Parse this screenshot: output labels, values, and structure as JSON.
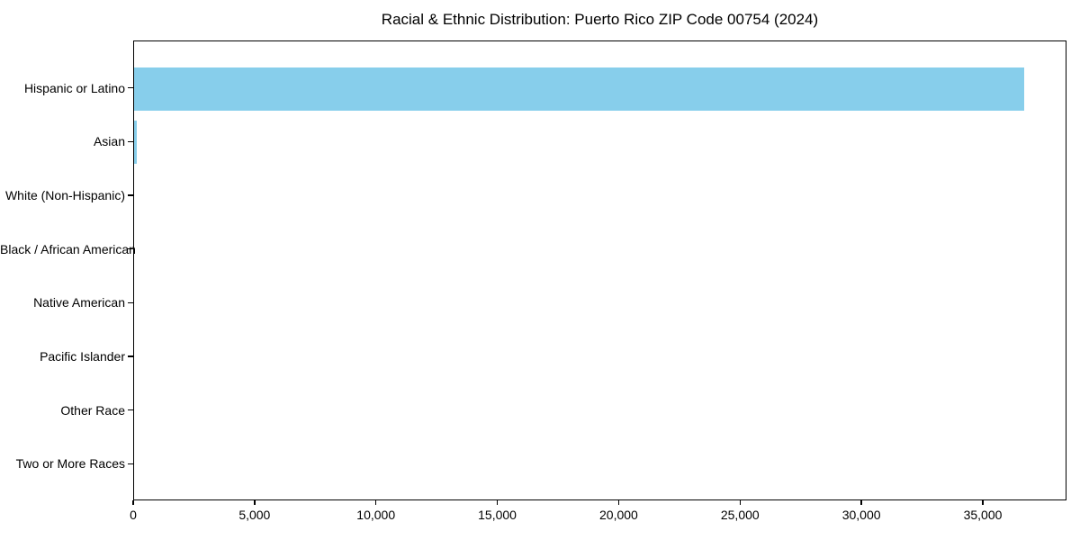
{
  "chart_data": {
    "type": "bar",
    "orientation": "horizontal",
    "title": "Racial & Ethnic Distribution: Puerto Rico ZIP Code 00754 (2024)",
    "categories": [
      "Hispanic or Latino",
      "Asian",
      "White (Non-Hispanic)",
      "Black / African American",
      "Native American",
      "Pacific Islander",
      "Other Race",
      "Two or More Races"
    ],
    "values": [
      36660,
      110,
      0,
      0,
      0,
      0,
      0,
      0
    ],
    "xlabel": "",
    "ylabel": "",
    "xlim": [
      0,
      38450
    ],
    "x_ticks": [
      0,
      5000,
      10000,
      15000,
      20000,
      25000,
      30000,
      35000
    ],
    "x_tick_labels": [
      "0",
      "5,000",
      "10,000",
      "15,000",
      "20,000",
      "25,000",
      "30,000",
      "35,000"
    ],
    "grid": false,
    "legend": false,
    "bar_color": "#87CEEB",
    "background_color": "#ffffff",
    "axis_color": "#000000",
    "text_color": "#000000"
  }
}
